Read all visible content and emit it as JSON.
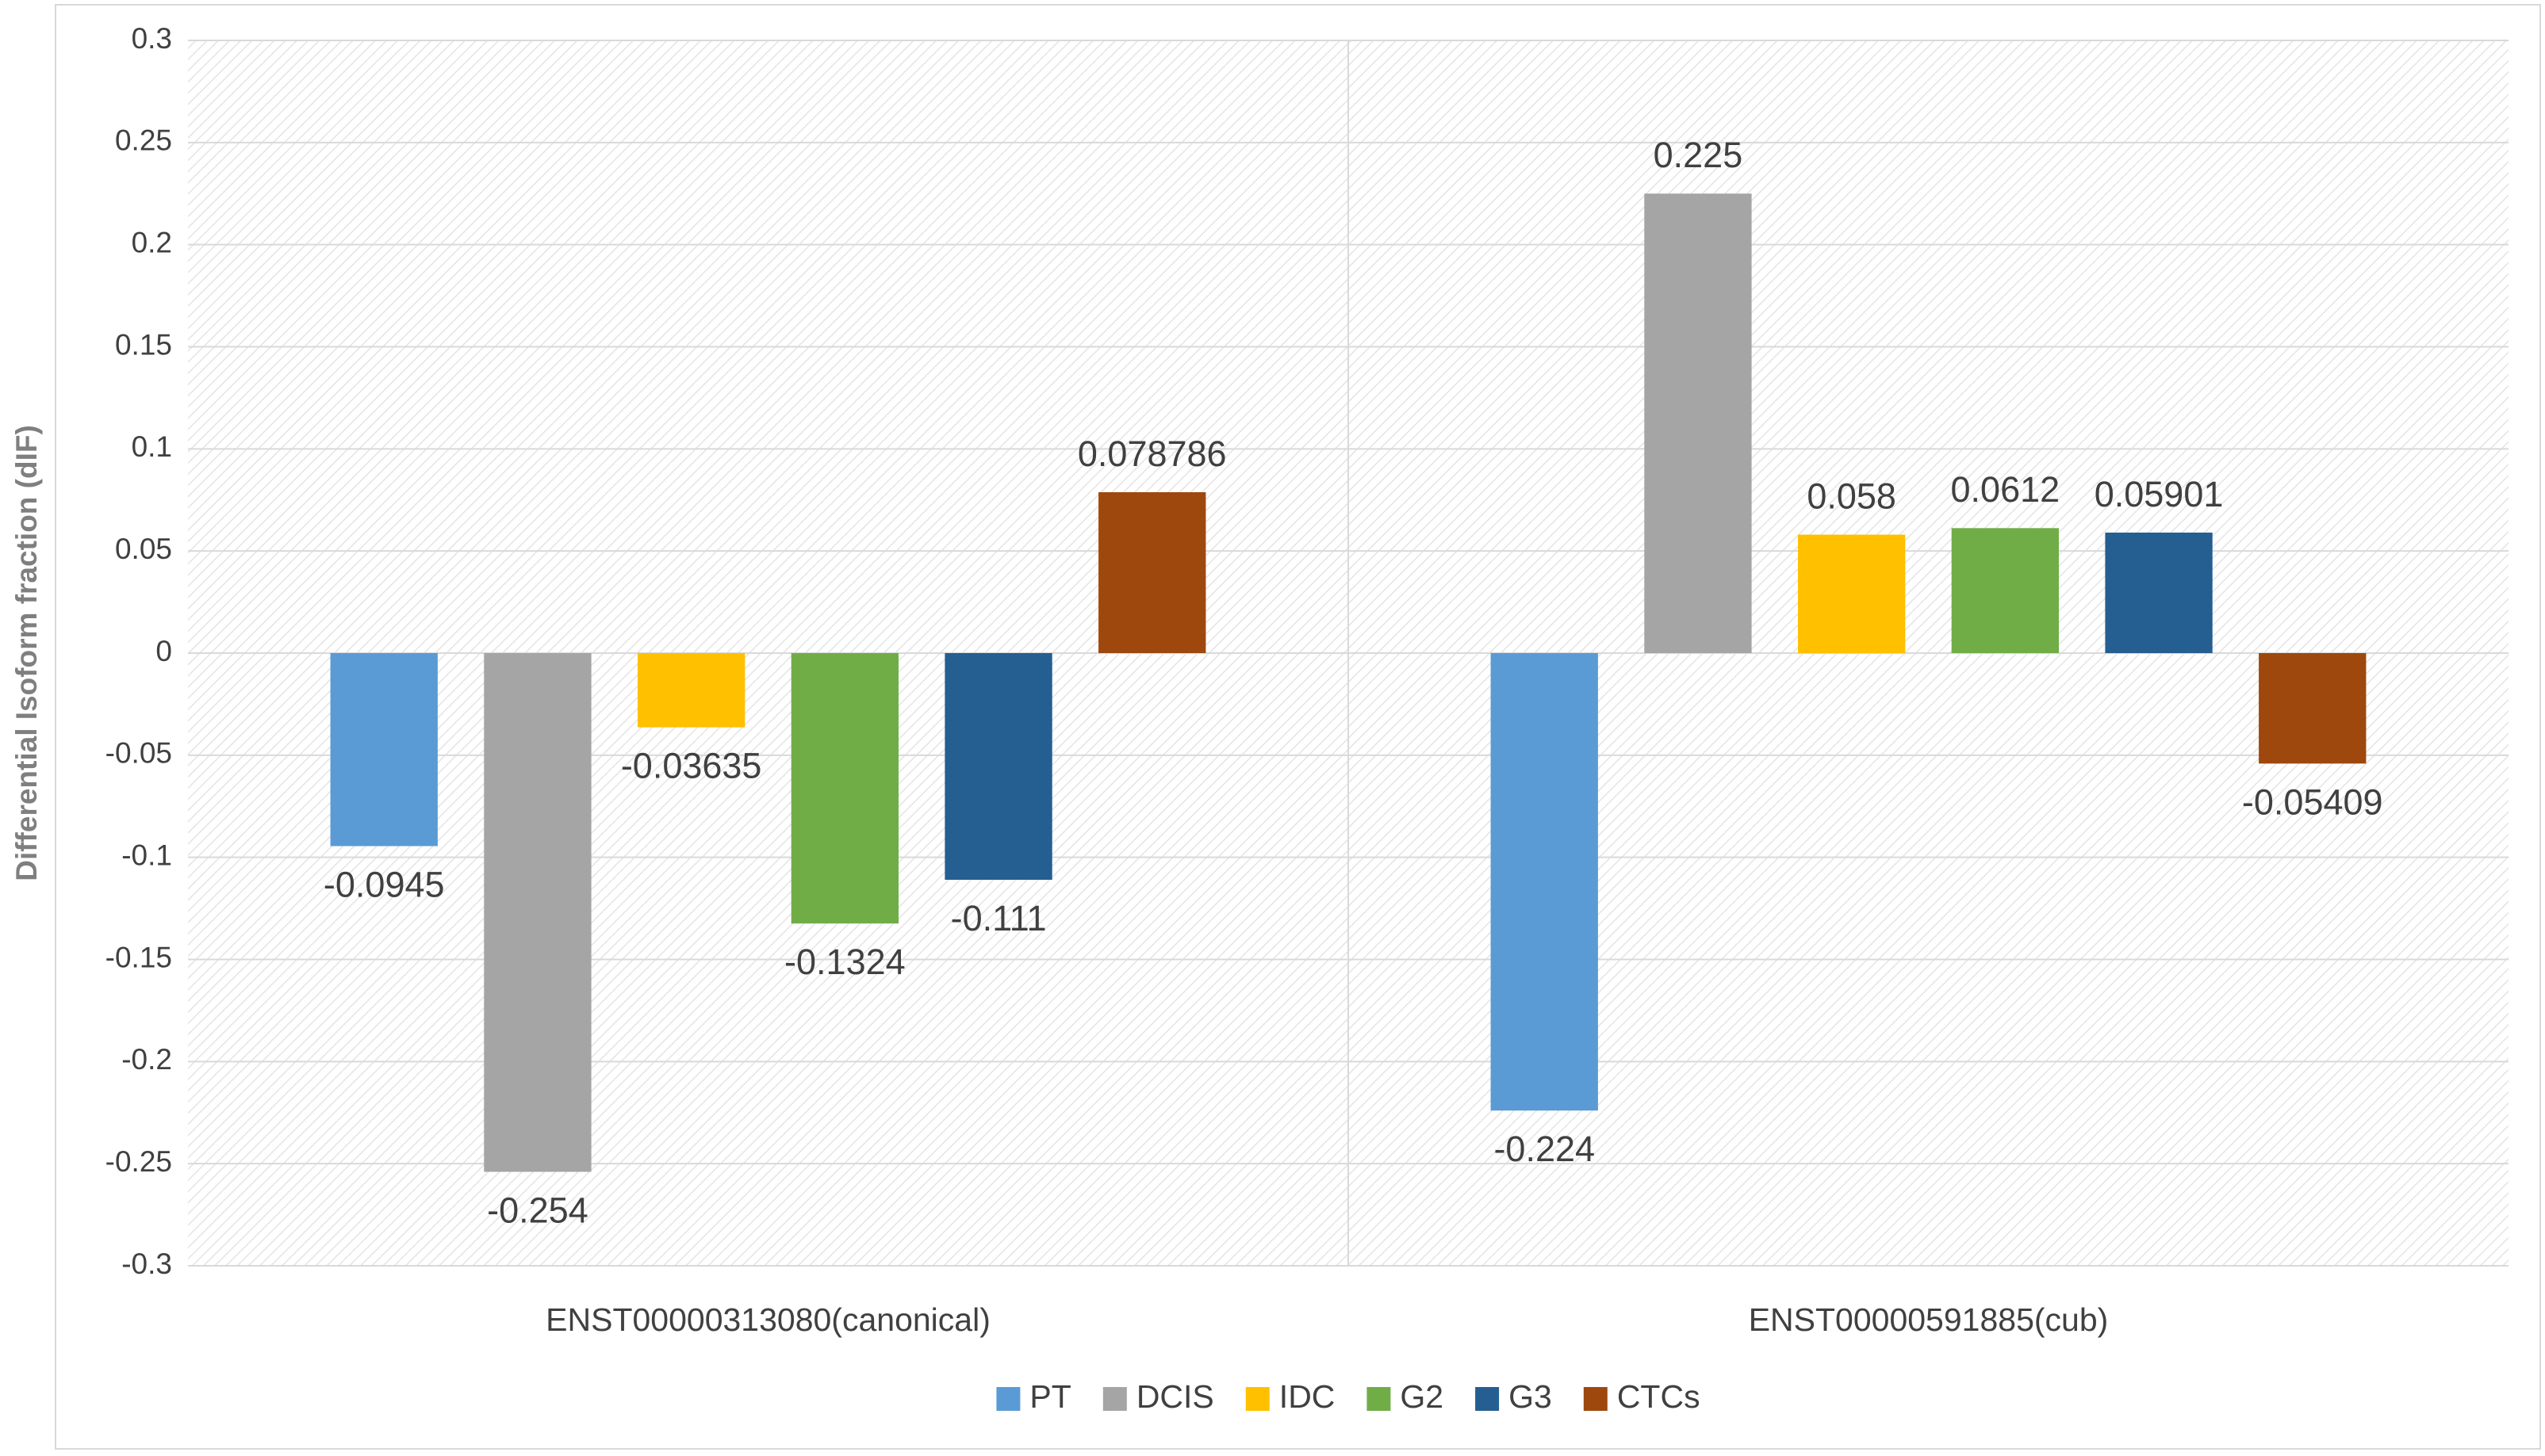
{
  "chart_data": {
    "type": "bar",
    "y_label": "Differential Isoform fraction (dIF)",
    "categories": [
      "ENST00000313080(canonical)",
      "ENST00000591885(cub)"
    ],
    "series": [
      {
        "name": "PT",
        "color": "#5b9bd5",
        "values": [
          -0.0945,
          -0.224
        ]
      },
      {
        "name": "DCIS",
        "color": "#a5a5a5",
        "values": [
          -0.254,
          0.225
        ]
      },
      {
        "name": "IDC",
        "color": "#ffc000",
        "values": [
          -0.03635,
          0.058
        ]
      },
      {
        "name": "G2",
        "color": "#70ad47",
        "values": [
          -0.1324,
          0.0612
        ]
      },
      {
        "name": "G3",
        "color": "#255e91",
        "values": [
          -0.111,
          0.05901
        ]
      },
      {
        "name": "CTCs",
        "color": "#9e480e",
        "values": [
          0.078786,
          -0.05409
        ]
      }
    ],
    "ylim": [
      -0.3,
      0.3
    ],
    "yticks": [
      -0.3,
      -0.25,
      -0.2,
      -0.15,
      -0.1,
      -0.05,
      0,
      0.05,
      0.1,
      0.15,
      0.2,
      0.25,
      0.3
    ],
    "grid": true,
    "legend": "bottom"
  }
}
